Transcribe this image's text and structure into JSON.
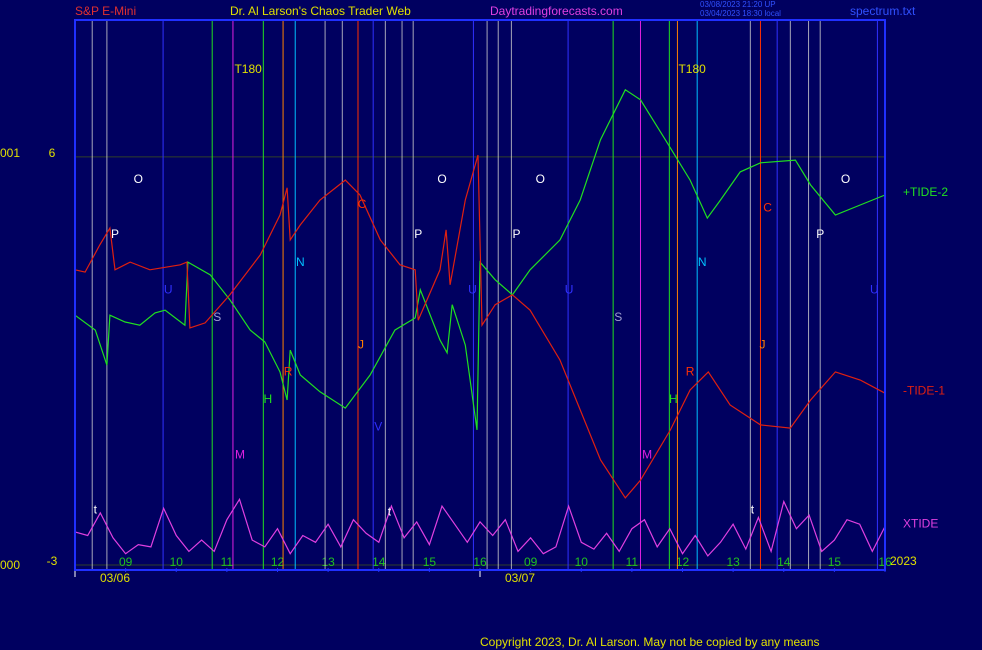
{
  "chart_data": {
    "type": "line",
    "title": "Dr. Al Larson's Chaos Trader Web",
    "symbol": "S&P E-Mini",
    "website": "Daytradingforecasts.com",
    "stamp": [
      "03/08/2023 21:20 UP",
      "03/04/2023 18:30 local"
    ],
    "file": "spectrum.txt",
    "copyright": "Copyright 2023, Dr. Al Larson. May not be copied by any means",
    "year": "2023",
    "left_codes": [
      "001",
      "000"
    ],
    "dates": [
      {
        "value": 0,
        "label": "03/06"
      },
      {
        "value": 8,
        "label": "03/07"
      }
    ],
    "xlim": [
      0,
      16
    ],
    "xticks": [
      {
        "value": 1,
        "label": "09"
      },
      {
        "value": 2,
        "label": "10"
      },
      {
        "value": 3,
        "label": "11"
      },
      {
        "value": 4,
        "label": "12"
      },
      {
        "value": 5,
        "label": "13"
      },
      {
        "value": 6,
        "label": "14"
      },
      {
        "value": 7,
        "label": "15"
      },
      {
        "value": 8,
        "label": "16"
      },
      {
        "value": 9,
        "label": "09"
      },
      {
        "value": 10,
        "label": "10"
      },
      {
        "value": 11,
        "label": "11"
      },
      {
        "value": 12,
        "label": "12"
      },
      {
        "value": 13,
        "label": "13"
      },
      {
        "value": 14,
        "label": "14"
      },
      {
        "value": 15,
        "label": "15"
      },
      {
        "value": 16,
        "label": "16"
      }
    ],
    "ylim": [
      -3.11,
      9.02
    ],
    "yticks": [
      6,
      -3
    ],
    "grid": true,
    "series": [
      {
        "name": "+TIDE-2",
        "color": "#20e020",
        "x": [
          0,
          0.4,
          0.63,
          0.69,
          0.99,
          1.28,
          1.58,
          1.78,
          2.17,
          2.23,
          2.67,
          3.06,
          3.46,
          3.75,
          4.05,
          4.19,
          4.25,
          4.45,
          4.84,
          5.34,
          5.83,
          6.32,
          6.72,
          6.82,
          7.21,
          7.35,
          7.45,
          7.71,
          7.94,
          8.0,
          8.3,
          8.64,
          8.99,
          9.58,
          9.98,
          10.38,
          10.87,
          11.17,
          11.66,
          12.15,
          12.49,
          12.75,
          13.14,
          13.54,
          14.23,
          14.53,
          15.02,
          15.51,
          16
        ],
        "values": [
          2.51,
          2.18,
          1.41,
          2.51,
          2.36,
          2.29,
          2.56,
          2.62,
          2.29,
          3.68,
          3.4,
          2.85,
          2.18,
          1.92,
          1.26,
          0.64,
          1.74,
          1.19,
          0.82,
          0.46,
          1.19,
          2.18,
          2.45,
          3.07,
          1.96,
          1.68,
          2.74,
          1.85,
          -0.02,
          3.68,
          3.29,
          2.96,
          3.51,
          4.17,
          5.05,
          6.38,
          7.48,
          7.26,
          6.38,
          5.49,
          4.65,
          5.05,
          5.67,
          5.87,
          5.93,
          5.38,
          4.72,
          4.94,
          5.16
        ]
      },
      {
        "name": "-TIDE-1",
        "color": "#e02010",
        "x": [
          0,
          0.2,
          0.49,
          0.69,
          0.79,
          1.09,
          1.48,
          2.08,
          2.21,
          2.27,
          2.57,
          3.06,
          3.66,
          4.05,
          4.19,
          4.25,
          4.45,
          4.84,
          5.34,
          5.63,
          6.03,
          6.42,
          6.72,
          6.78,
          7.21,
          7.33,
          7.41,
          7.71,
          7.96,
          8.04,
          8.3,
          8.64,
          8.99,
          9.58,
          9.98,
          10.38,
          10.87,
          11.17,
          11.76,
          12.15,
          12.51,
          12.94,
          13.54,
          14.13,
          14.53,
          15.02,
          15.51,
          16
        ],
        "values": [
          3.51,
          3.46,
          4.06,
          4.43,
          3.51,
          3.68,
          3.51,
          3.62,
          3.68,
          2.23,
          2.34,
          2.96,
          3.84,
          4.72,
          5.32,
          4.17,
          4.5,
          5.05,
          5.49,
          5.16,
          4.17,
          3.62,
          3.51,
          2.4,
          3.51,
          4.39,
          3.18,
          5.05,
          6.04,
          2.29,
          2.74,
          2.96,
          2.62,
          1.52,
          0.42,
          -0.68,
          -1.52,
          -1.13,
          -0.02,
          0.86,
          1.26,
          0.53,
          0.09,
          0.02,
          0.64,
          1.26,
          1.08,
          0.79
        ]
      },
      {
        "name": "XTIDE",
        "color": "#e040e0",
        "x": [
          0,
          0.25,
          0.5,
          0.75,
          1,
          1.25,
          1.5,
          1.75,
          2,
          2.25,
          2.5,
          2.75,
          3,
          3.25,
          3.5,
          3.75,
          4,
          4.25,
          4.5,
          4.75,
          5,
          5.25,
          5.5,
          5.75,
          6,
          6.25,
          6.5,
          6.75,
          7,
          7.25,
          7.5,
          7.75,
          8,
          8.25,
          8.5,
          8.75,
          9,
          9.25,
          9.5,
          9.75,
          10,
          10.25,
          10.5,
          10.75,
          11,
          11.25,
          11.5,
          11.75,
          12,
          12.25,
          12.5,
          12.75,
          13,
          13.25,
          13.5,
          13.75,
          14,
          14.25,
          14.5,
          14.75,
          15,
          15.25,
          15.5,
          15.75,
          16
        ],
        "values": [
          -2.27,
          -2.35,
          -1.85,
          -2.4,
          -2.75,
          -2.55,
          -2.6,
          -1.75,
          -2.35,
          -2.7,
          -2.45,
          -2.7,
          -2.0,
          -1.55,
          -2.45,
          -2.6,
          -2.2,
          -2.75,
          -2.35,
          -2.5,
          -2.1,
          -2.6,
          -2.0,
          -2.3,
          -2.5,
          -1.7,
          -2.4,
          -2.05,
          -2.55,
          -1.7,
          -2.1,
          -2.5,
          -2.05,
          -2.35,
          -2.0,
          -2.7,
          -2.4,
          -2.75,
          -2.6,
          -1.7,
          -2.5,
          -2.65,
          -2.3,
          -2.7,
          -2.2,
          -2.0,
          -2.6,
          -2.2,
          -2.75,
          -2.35,
          -2.8,
          -2.5,
          -2.1,
          -2.65,
          -1.95,
          -2.7,
          -1.6,
          -2.2,
          -1.9,
          -2.7,
          -2.45,
          -2.0,
          -2.1,
          -2.7,
          -2.15
        ]
      }
    ],
    "vlines": [
      {
        "x": 0.34,
        "color": "#d0d0d0"
      },
      {
        "x": 0.63,
        "color": "#d0d0d0"
      },
      {
        "x": 1.74,
        "color": "#3030ff"
      },
      {
        "x": 2.71,
        "color": "#20e020"
      },
      {
        "x": 3.12,
        "color": "#e020e0"
      },
      {
        "x": 3.72,
        "color": "#20e020"
      },
      {
        "x": 4.11,
        "color": "#ff8000"
      },
      {
        "x": 4.35,
        "color": "#00c0ff"
      },
      {
        "x": 4.94,
        "color": "#d0d0d0"
      },
      {
        "x": 5.28,
        "color": "#d0d0d0"
      },
      {
        "x": 5.59,
        "color": "#ff3000"
      },
      {
        "x": 5.89,
        "color": "#3030ff"
      },
      {
        "x": 6.13,
        "color": "#d0d0d0"
      },
      {
        "x": 6.46,
        "color": "#d0d0d0"
      },
      {
        "x": 6.68,
        "color": "#d0d0d0"
      },
      {
        "x": 7.87,
        "color": "#3030ff"
      },
      {
        "x": 8.14,
        "color": "#d0d0d0"
      },
      {
        "x": 8.36,
        "color": "#d0d0d0"
      },
      {
        "x": 8.62,
        "color": "#d0d0d0"
      },
      {
        "x": 9.74,
        "color": "#3030ff"
      },
      {
        "x": 10.63,
        "color": "#20e020"
      },
      {
        "x": 11.17,
        "color": "#e020e0"
      },
      {
        "x": 11.74,
        "color": "#20e020"
      },
      {
        "x": 11.9,
        "color": "#ff8000"
      },
      {
        "x": 12.29,
        "color": "#00c0ff"
      },
      {
        "x": 13.34,
        "color": "#d0d0d0"
      },
      {
        "x": 13.54,
        "color": "#ff3000"
      },
      {
        "x": 13.87,
        "color": "#3030ff"
      },
      {
        "x": 14.13,
        "color": "#d0d0d0"
      },
      {
        "x": 14.49,
        "color": "#d0d0d0"
      },
      {
        "x": 14.72,
        "color": "#d0d0d0"
      },
      {
        "x": 15.85,
        "color": "#3030ff"
      }
    ],
    "annotations": [
      {
        "text": "T180",
        "x": 3.42,
        "y": 7.92,
        "color": "#e0e000"
      },
      {
        "text": "T180",
        "x": 12.19,
        "y": 7.92,
        "color": "#e0e000"
      },
      {
        "text": "O",
        "x": 1.25,
        "y": 5.49,
        "color": "#ffffff"
      },
      {
        "text": "P",
        "x": 0.79,
        "y": 4.28,
        "color": "#ffffff"
      },
      {
        "text": "U",
        "x": 1.84,
        "y": 3.06,
        "color": "#3030ff"
      },
      {
        "text": "S",
        "x": 2.81,
        "y": 2.45,
        "color": "#a0a0d0"
      },
      {
        "text": "N",
        "x": 4.45,
        "y": 3.66,
        "color": "#00c0ff"
      },
      {
        "text": "H",
        "x": 3.81,
        "y": 0.64,
        "color": "#20e020"
      },
      {
        "text": "R",
        "x": 4.21,
        "y": 1.25,
        "color": "#ff3000"
      },
      {
        "text": "C",
        "x": 5.67,
        "y": 4.94,
        "color": "#ff3000"
      },
      {
        "text": "J",
        "x": 5.65,
        "y": 1.85,
        "color": "#ff8000"
      },
      {
        "text": "V",
        "x": 5.99,
        "y": 0.04,
        "color": "#3030ff"
      },
      {
        "text": "M",
        "x": 3.26,
        "y": -0.58,
        "color": "#e020e0"
      },
      {
        "text": "O",
        "x": 7.25,
        "y": 5.49,
        "color": "#ffffff"
      },
      {
        "text": "P",
        "x": 6.78,
        "y": 4.28,
        "color": "#ffffff"
      },
      {
        "text": "U",
        "x": 7.85,
        "y": 3.06,
        "color": "#3030ff"
      },
      {
        "text": "O",
        "x": 9.19,
        "y": 5.49,
        "color": "#ffffff"
      },
      {
        "text": "P",
        "x": 8.72,
        "y": 4.28,
        "color": "#ffffff"
      },
      {
        "text": "U",
        "x": 9.76,
        "y": 3.06,
        "color": "#3030ff"
      },
      {
        "text": "S",
        "x": 10.73,
        "y": 2.45,
        "color": "#a0a0d0"
      },
      {
        "text": "N",
        "x": 12.39,
        "y": 3.66,
        "color": "#00c0ff"
      },
      {
        "text": "H",
        "x": 11.82,
        "y": 0.64,
        "color": "#20e020"
      },
      {
        "text": "R",
        "x": 12.15,
        "y": 1.25,
        "color": "#ff3000"
      },
      {
        "text": "C",
        "x": 13.68,
        "y": 4.87,
        "color": "#ff3000"
      },
      {
        "text": "J",
        "x": 13.58,
        "y": 1.85,
        "color": "#ff8000"
      },
      {
        "text": "M",
        "x": 11.3,
        "y": -0.58,
        "color": "#e020e0"
      },
      {
        "text": "O",
        "x": 15.22,
        "y": 5.49,
        "color": "#ffffff"
      },
      {
        "text": "P",
        "x": 14.72,
        "y": 4.28,
        "color": "#ffffff"
      },
      {
        "text": "U",
        "x": 15.79,
        "y": 3.06,
        "color": "#3030ff"
      },
      {
        "text": "t",
        "x": 0.4,
        "y": -1.79,
        "color": "#ffffff"
      },
      {
        "text": "t",
        "x": 6.21,
        "y": -1.84,
        "color": "#ffffff"
      },
      {
        "text": "t",
        "x": 13.38,
        "y": -1.79,
        "color": "#ffffff"
      }
    ]
  }
}
